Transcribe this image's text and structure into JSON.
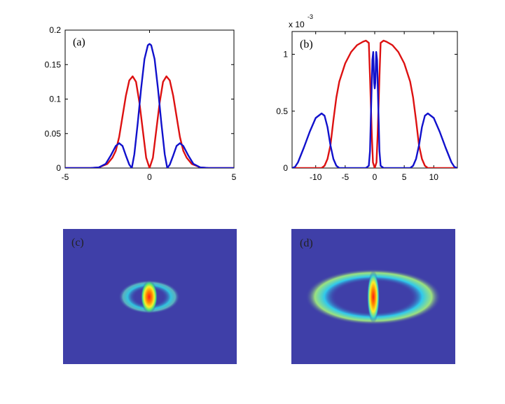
{
  "chart_data": [
    {
      "id": "a",
      "type": "line",
      "panel_label": "(a)",
      "xlim": [
        -5,
        5
      ],
      "ylim": [
        0,
        0.2
      ],
      "xticks": [
        -5,
        0,
        5
      ],
      "yticks": [
        0,
        0.05,
        0.1,
        0.15,
        0.2
      ],
      "xtick_labels": [
        "-5",
        "0",
        "5"
      ],
      "ytick_labels": [
        "0",
        "0.05",
        "0.1",
        "0.15",
        "0.2"
      ],
      "exponent_label": "",
      "series": [
        {
          "name": "red",
          "color": "#dd1111",
          "x": [
            -5,
            -3.5,
            -3,
            -2.5,
            -2.2,
            -2,
            -1.8,
            -1.6,
            -1.4,
            -1.2,
            -1.0,
            -0.8,
            -0.6,
            -0.4,
            -0.2,
            0,
            0.2,
            0.4,
            0.6,
            0.8,
            1.0,
            1.2,
            1.4,
            1.6,
            1.8,
            2,
            2.2,
            2.5,
            3,
            3.5,
            5
          ],
          "y": [
            0,
            0,
            0.001,
            0.006,
            0.015,
            0.025,
            0.045,
            0.075,
            0.105,
            0.127,
            0.133,
            0.125,
            0.095,
            0.055,
            0.015,
            0,
            0.015,
            0.055,
            0.095,
            0.125,
            0.133,
            0.127,
            0.105,
            0.075,
            0.045,
            0.025,
            0.015,
            0.006,
            0.001,
            0,
            0
          ]
        },
        {
          "name": "blue",
          "color": "#1111cc",
          "x": [
            -5,
            -3.5,
            -3,
            -2.6,
            -2.3,
            -2.0,
            -1.8,
            -1.6,
            -1.4,
            -1.2,
            -1.05,
            -0.9,
            -0.7,
            -0.5,
            -0.3,
            -0.1,
            0,
            0.1,
            0.3,
            0.5,
            0.7,
            0.9,
            1.05,
            1.2,
            1.4,
            1.6,
            1.8,
            2.0,
            2.3,
            2.6,
            3,
            3.5,
            5
          ],
          "y": [
            0,
            0,
            0.001,
            0.006,
            0.018,
            0.032,
            0.036,
            0.032,
            0.018,
            0.005,
            0.0,
            0.02,
            0.065,
            0.115,
            0.158,
            0.178,
            0.18,
            0.178,
            0.158,
            0.115,
            0.065,
            0.02,
            0.0,
            0.005,
            0.018,
            0.032,
            0.036,
            0.032,
            0.018,
            0.006,
            0.001,
            0,
            0
          ]
        }
      ]
    },
    {
      "id": "b",
      "type": "line",
      "panel_label": "(b)",
      "xlim": [
        -14,
        14
      ],
      "ylim": [
        0,
        1.2
      ],
      "xticks": [
        -10,
        -5,
        0,
        5,
        10
      ],
      "yticks": [
        0,
        0.5,
        1
      ],
      "xtick_labels": [
        "-10",
        "-5",
        "0",
        "5",
        "10"
      ],
      "ytick_labels": [
        "0",
        "0.5",
        "1"
      ],
      "exponent_label": "x 10",
      "exponent_power": "-3",
      "series": [
        {
          "name": "red",
          "color": "#dd1111",
          "x": [
            -14,
            -9,
            -8.5,
            -8,
            -7.5,
            -7,
            -6.5,
            -6,
            -5,
            -4,
            -3,
            -2,
            -1.5,
            -1.0,
            -0.8,
            -0.5,
            -0.3,
            0,
            0.3,
            0.5,
            0.8,
            1.0,
            1.5,
            2,
            3,
            4,
            5,
            6,
            6.5,
            7,
            7.5,
            8,
            8.5,
            9,
            14
          ],
          "y": [
            0,
            0,
            0.02,
            0.08,
            0.2,
            0.42,
            0.62,
            0.76,
            0.92,
            1.02,
            1.08,
            1.11,
            1.12,
            1.1,
            0.8,
            0.3,
            0.05,
            0,
            0.05,
            0.3,
            0.8,
            1.1,
            1.12,
            1.11,
            1.08,
            1.02,
            0.92,
            0.76,
            0.62,
            0.42,
            0.2,
            0.08,
            0.02,
            0,
            0
          ]
        },
        {
          "name": "blue",
          "color": "#1111cc",
          "x": [
            -14,
            -13.5,
            -13,
            -12,
            -11,
            -10,
            -9,
            -8.5,
            -8,
            -7.5,
            -7,
            -6.5,
            -6,
            -5.5,
            -1.5,
            -1.0,
            -0.8,
            -0.6,
            -0.4,
            -0.25,
            -0.1,
            0,
            0.1,
            0.25,
            0.4,
            0.6,
            0.8,
            1.0,
            1.5,
            5.5,
            6,
            6.5,
            7,
            7.5,
            8,
            8.5,
            9,
            10,
            11,
            12,
            13,
            13.5,
            14
          ],
          "y": [
            0,
            0.01,
            0.05,
            0.18,
            0.32,
            0.44,
            0.48,
            0.46,
            0.36,
            0.2,
            0.08,
            0.02,
            0,
            0,
            0,
            0.02,
            0.15,
            0.55,
            0.95,
            1.02,
            0.75,
            0.7,
            0.75,
            1.02,
            0.95,
            0.55,
            0.15,
            0.02,
            0,
            0,
            0,
            0.02,
            0.08,
            0.2,
            0.36,
            0.46,
            0.48,
            0.44,
            0.32,
            0.18,
            0.05,
            0.01,
            0
          ]
        }
      ]
    },
    {
      "id": "c",
      "type": "heatmap",
      "panel_label": "(c)",
      "colormap": "jet",
      "background_color": "#3f3fa8",
      "features": [
        {
          "shape": "ring",
          "cx": 0.0,
          "cy": 0.0,
          "rx": 0.3,
          "ry": 0.12,
          "intensity": 0.45
        },
        {
          "shape": "core",
          "cx": 0.0,
          "cy": 0.0,
          "rx": 0.06,
          "ry": 0.16,
          "intensity": 1.0
        }
      ]
    },
    {
      "id": "d",
      "type": "heatmap",
      "panel_label": "(d)",
      "colormap": "jet",
      "background_color": "#3f3fa8",
      "features": [
        {
          "shape": "ring",
          "cx": 0.0,
          "cy": 0.0,
          "rx": 0.75,
          "ry": 0.3,
          "intensity": 0.5
        },
        {
          "shape": "core",
          "cx": 0.0,
          "cy": 0.0,
          "rx": 0.05,
          "ry": 0.3,
          "intensity": 1.0
        }
      ]
    }
  ]
}
